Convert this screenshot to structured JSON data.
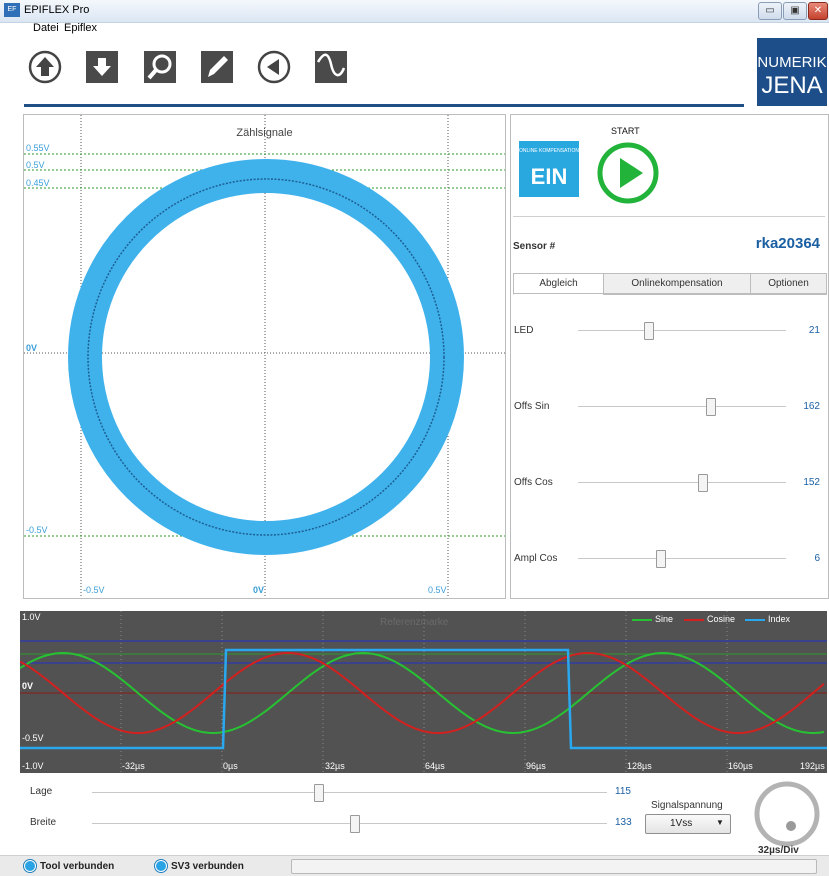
{
  "window": {
    "title": "EPIFLEX Pro",
    "minimize": "▭",
    "maximize": "▣",
    "close": "✕"
  },
  "menu": [
    "Datei",
    "Epiflex"
  ],
  "toolbar": [
    {
      "name": "upload-icon"
    },
    {
      "name": "download-icon"
    },
    {
      "name": "magnifier-icon"
    },
    {
      "name": "pen-icon"
    },
    {
      "name": "back-icon"
    },
    {
      "name": "waveform-icon"
    }
  ],
  "logo": {
    "line1": "NUMERIK",
    "line2": "JENA"
  },
  "xy_plot": {
    "title": "Zählsignale",
    "y_labels": [
      "0.55V",
      "0.5V",
      "0.45V",
      "0V",
      "-0.5V"
    ],
    "x_labels": [
      "-0.5V",
      "0V",
      "0.5V"
    ],
    "color": "#3fb2ec"
  },
  "right": {
    "online_small": "ONLINE KOMPENSATION",
    "online_state": "EIN",
    "start_label": "START",
    "sensor_label": "Sensor #",
    "sensor_value": "rka20364",
    "tabs": [
      "Abgleich",
      "Onlinekompensation",
      "Optionen"
    ],
    "sliders": [
      {
        "label": "LED",
        "value": "21",
        "level": 0.34
      },
      {
        "label": "Offs Sin",
        "value": "162",
        "level": 0.64
      },
      {
        "label": "Offs Cos",
        "value": "152",
        "level": 0.6
      },
      {
        "label": "Ampl Cos",
        "value": "6",
        "level": 0.4
      }
    ]
  },
  "scope": {
    "watermark": "Referenzmarke",
    "legend": [
      {
        "name": "Sine",
        "color": "#27c232"
      },
      {
        "name": "Cosine",
        "color": "#d4201e"
      },
      {
        "name": "Index",
        "color": "#29a8ef"
      }
    ],
    "y_labels": [
      "1.0V",
      "0V",
      "-0.5V",
      "-1.0V"
    ],
    "x_labels": [
      "-32µs",
      "0µs",
      "32µs",
      "64µs",
      "96µs",
      "128µs",
      "160µs",
      "192µs"
    ]
  },
  "controls": {
    "lage_label": "Lage",
    "lage_value": "115",
    "lage_level": 0.44,
    "breite_label": "Breite",
    "breite_value": "133",
    "breite_level": 0.51,
    "signal_label": "Signalspannung",
    "signal_value": "1Vss",
    "knob_value": "32µs/Div"
  },
  "status": {
    "tool": "Tool verbunden",
    "sv3": "SV3 verbunden"
  }
}
